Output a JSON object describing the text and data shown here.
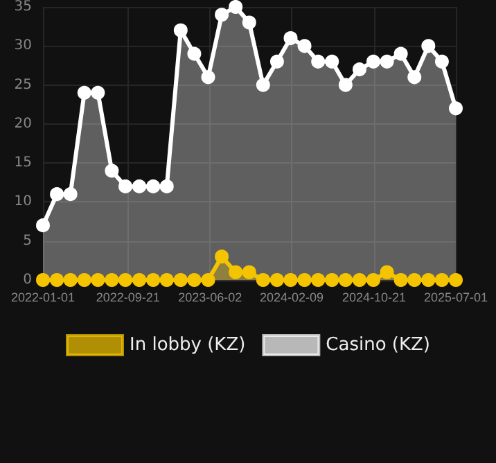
{
  "chart_data": {
    "type": "area",
    "x": [
      "2022-01-01",
      "2022-02-13",
      "2022-03-27",
      "2022-05-09",
      "2022-06-20",
      "2022-08-02",
      "2022-09-13",
      "2022-10-26",
      "2022-12-08",
      "2023-01-19",
      "2023-03-03",
      "2023-04-14",
      "2023-05-27",
      "2023-07-08",
      "2023-08-20",
      "2023-10-01",
      "2023-11-13",
      "2023-12-26",
      "2024-02-06",
      "2024-03-20",
      "2024-05-01",
      "2024-06-13",
      "2024-07-25",
      "2024-09-06",
      "2024-10-19",
      "2024-11-30",
      "2025-01-12",
      "2025-02-23",
      "2025-04-07",
      "2025-05-19",
      "2025-07-01"
    ],
    "series": [
      {
        "name": "In lobby (KZ)",
        "color": "#f5c400",
        "values": [
          0,
          0,
          0,
          0,
          0,
          0,
          0,
          0,
          0,
          0,
          0,
          0,
          0,
          3,
          1,
          1,
          0,
          0,
          0,
          0,
          0,
          0,
          0,
          0,
          0,
          1,
          0,
          0,
          0,
          0,
          0
        ]
      },
      {
        "name": "Casino (KZ)",
        "color": "#ffffff",
        "values": [
          7,
          11,
          11,
          24,
          24,
          14,
          12,
          12,
          12,
          12,
          32,
          29,
          26,
          34,
          35,
          33,
          25,
          28,
          31,
          30,
          28,
          28,
          25,
          27,
          28,
          28,
          29,
          26,
          30,
          28,
          22
        ]
      }
    ],
    "xlim": [
      "2022-01-01",
      "2025-07-01"
    ],
    "xticks": [
      "2022-01-01",
      "2022-09-21",
      "2023-06-02",
      "2024-02-09",
      "2024-10-21",
      "2025-07-01"
    ],
    "ylim": [
      0,
      35
    ],
    "yticks": [
      0,
      5,
      10,
      15,
      20,
      25,
      30,
      35
    ],
    "grid": true,
    "legend": "bottom",
    "marker": "circle",
    "line_style": "solid"
  }
}
